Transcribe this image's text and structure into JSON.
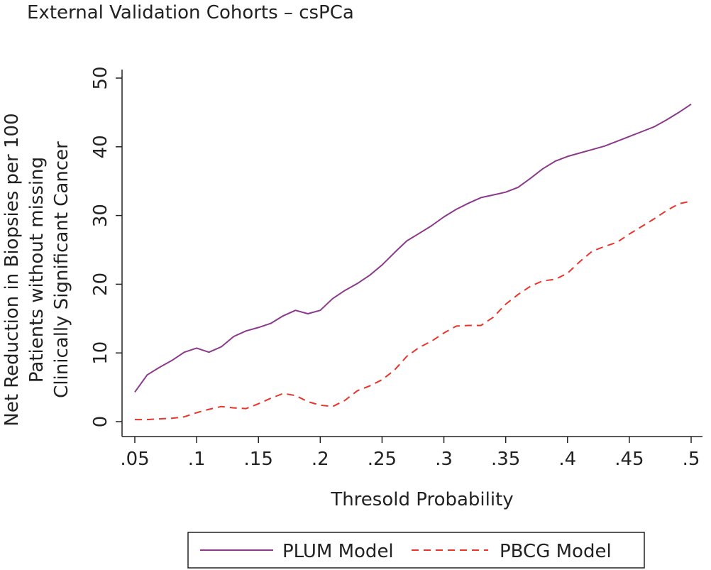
{
  "chart_data": {
    "type": "line",
    "title": "External Validation Cohorts – csPCa",
    "xlabel": "Thresold Probability",
    "ylabel_lines": [
      "Net Reduction in Biopsies per 100",
      "Patients without missing",
      "Clinically Significant Cancer"
    ],
    "xlim": [
      0.05,
      0.5
    ],
    "ylim": [
      0,
      50
    ],
    "x_ticks": [
      {
        "value": 0.05,
        "label": ".05"
      },
      {
        "value": 0.1,
        "label": ".1"
      },
      {
        "value": 0.15,
        "label": ".15"
      },
      {
        "value": 0.2,
        "label": ".2"
      },
      {
        "value": 0.25,
        "label": ".25"
      },
      {
        "value": 0.3,
        "label": ".3"
      },
      {
        "value": 0.35,
        "label": ".35"
      },
      {
        "value": 0.4,
        "label": ".4"
      },
      {
        "value": 0.45,
        "label": ".45"
      },
      {
        "value": 0.5,
        "label": ".5"
      }
    ],
    "y_ticks": [
      {
        "value": 0,
        "label": "0"
      },
      {
        "value": 10,
        "label": "10"
      },
      {
        "value": 20,
        "label": "20"
      },
      {
        "value": 30,
        "label": "30"
      },
      {
        "value": 40,
        "label": "40"
      },
      {
        "value": 50,
        "label": "50"
      }
    ],
    "grid": false,
    "legend_position": "bottom",
    "x": [
      0.05,
      0.06,
      0.07,
      0.08,
      0.09,
      0.1,
      0.11,
      0.12,
      0.13,
      0.14,
      0.15,
      0.16,
      0.17,
      0.18,
      0.19,
      0.2,
      0.21,
      0.22,
      0.23,
      0.24,
      0.25,
      0.26,
      0.27,
      0.28,
      0.29,
      0.3,
      0.31,
      0.32,
      0.33,
      0.34,
      0.35,
      0.36,
      0.37,
      0.38,
      0.39,
      0.4,
      0.41,
      0.42,
      0.43,
      0.44,
      0.45,
      0.46,
      0.47,
      0.48,
      0.49,
      0.5
    ],
    "series": [
      {
        "name": "PLUM Model",
        "color": "#8b3a8b",
        "style": "solid",
        "values": [
          4.3,
          6.8,
          7.9,
          8.9,
          10.1,
          10.7,
          10.1,
          10.9,
          12.4,
          13.2,
          13.7,
          14.3,
          15.4,
          16.2,
          15.7,
          16.2,
          17.9,
          19.1,
          20.1,
          21.3,
          22.8,
          24.6,
          26.3,
          27.4,
          28.5,
          29.8,
          30.9,
          31.8,
          32.6,
          33.0,
          33.4,
          34.1,
          35.4,
          36.8,
          37.9,
          38.6,
          39.1,
          39.6,
          40.1,
          40.8,
          41.5,
          42.2,
          42.9,
          43.9,
          45.0,
          46.2
        ]
      },
      {
        "name": "PBCG Model",
        "color": "#e8342a",
        "style": "dashed",
        "values": [
          0.3,
          0.3,
          0.4,
          0.5,
          0.7,
          1.3,
          1.8,
          2.2,
          2.0,
          1.9,
          2.6,
          3.4,
          4.1,
          3.8,
          2.9,
          2.4,
          2.2,
          3.1,
          4.5,
          5.2,
          6.1,
          7.5,
          9.5,
          10.8,
          11.7,
          12.9,
          13.9,
          14.0,
          14.0,
          15.2,
          17.1,
          18.5,
          19.7,
          20.5,
          20.7,
          21.6,
          23.3,
          24.8,
          25.5,
          26.1,
          27.3,
          28.4,
          29.5,
          30.7,
          31.7,
          32.1
        ]
      }
    ]
  }
}
